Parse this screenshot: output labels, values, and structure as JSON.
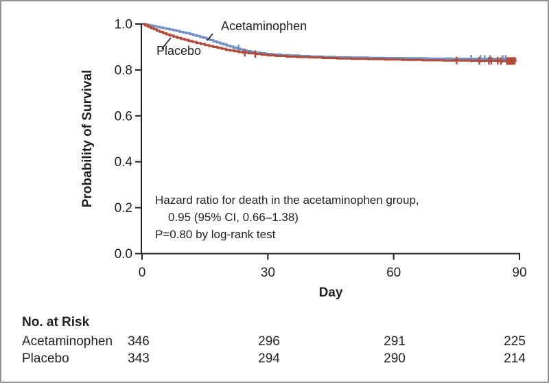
{
  "figure": {
    "y_axis_label": "Probability of Survival",
    "x_axis_label": "Day",
    "curve_labels": {
      "acetaminophen": "Acetaminophen",
      "placebo": "Placebo"
    },
    "annotation": {
      "line1": "Hazard ratio for death in the acetaminophen group,",
      "line2": "0.95 (95% CI, 0.66–1.38)",
      "line3": "P=0.80 by log-rank test"
    }
  },
  "colors": {
    "acetaminophen": "#7090C4",
    "placebo": "#B14A38",
    "axis": "#231f20",
    "border": "#8f9194"
  },
  "chart_data": {
    "type": "line",
    "subtype": "kaplan-meier-step",
    "title": "",
    "xlabel": "Day",
    "ylabel": "Probability of Survival",
    "xlim": [
      0,
      90
    ],
    "ylim": [
      0.0,
      1.0
    ],
    "grid": false,
    "curve_end_day": 89.3,
    "xticks": [
      {
        "label": "0",
        "value": 0
      },
      {
        "label": "30",
        "value": 30
      },
      {
        "label": "60",
        "value": 60
      },
      {
        "label": "90",
        "value": 90
      }
    ],
    "yticks": [
      {
        "label": "0.0",
        "value": 0.0
      },
      {
        "label": "0.2",
        "value": 0.2
      },
      {
        "label": "0.4",
        "value": 0.4
      },
      {
        "label": "0.6",
        "value": 0.6
      },
      {
        "label": "0.8",
        "value": 0.8
      },
      {
        "label": "1.0",
        "value": 1.0
      }
    ],
    "series": [
      {
        "name": "Acetaminophen",
        "color": "#7090C4",
        "steps": [
          [
            0,
            1.0
          ],
          [
            1,
            0.997
          ],
          [
            1.8,
            0.994
          ],
          [
            2.6,
            0.991
          ],
          [
            3.4,
            0.988
          ],
          [
            4.2,
            0.985
          ],
          [
            5,
            0.982
          ],
          [
            5.8,
            0.979
          ],
          [
            6.6,
            0.976
          ],
          [
            7.4,
            0.973
          ],
          [
            8.2,
            0.97
          ],
          [
            9,
            0.966
          ],
          [
            9.8,
            0.963
          ],
          [
            10.6,
            0.96
          ],
          [
            11.4,
            0.956
          ],
          [
            12.2,
            0.952
          ],
          [
            13,
            0.948
          ],
          [
            13.8,
            0.944
          ],
          [
            14.6,
            0.94
          ],
          [
            15.4,
            0.935
          ],
          [
            16.2,
            0.93
          ],
          [
            17,
            0.925
          ],
          [
            17.8,
            0.92
          ],
          [
            18.6,
            0.915
          ],
          [
            19.4,
            0.911
          ],
          [
            20.2,
            0.906
          ],
          [
            21,
            0.902
          ],
          [
            21.8,
            0.897
          ],
          [
            22.6,
            0.893
          ],
          [
            23.4,
            0.889
          ],
          [
            24.2,
            0.885
          ],
          [
            25,
            0.882
          ],
          [
            26,
            0.879
          ],
          [
            27,
            0.876
          ],
          [
            28.2,
            0.873
          ],
          [
            29.5,
            0.87
          ],
          [
            31,
            0.868
          ],
          [
            33,
            0.865
          ],
          [
            35,
            0.863
          ],
          [
            37.5,
            0.861
          ],
          [
            40,
            0.859
          ],
          [
            43,
            0.857
          ],
          [
            46,
            0.855
          ],
          [
            50,
            0.854
          ],
          [
            54,
            0.853
          ],
          [
            58,
            0.852
          ],
          [
            62,
            0.851
          ],
          [
            68,
            0.85
          ],
          [
            74,
            0.849
          ],
          [
            80,
            0.848
          ],
          [
            86,
            0.848
          ]
        ],
        "censor_days": [
          23,
          78.5,
          80.7,
          81.7,
          83,
          86,
          86.7
        ]
      },
      {
        "name": "Placebo",
        "color": "#B14A38",
        "steps": [
          [
            0,
            1.0
          ],
          [
            0.7,
            0.994
          ],
          [
            1.4,
            0.988
          ],
          [
            2.1,
            0.982
          ],
          [
            2.8,
            0.977
          ],
          [
            3.5,
            0.971
          ],
          [
            4.2,
            0.966
          ],
          [
            5,
            0.96
          ],
          [
            5.8,
            0.955
          ],
          [
            6.6,
            0.95
          ],
          [
            7.5,
            0.945
          ],
          [
            8.4,
            0.94
          ],
          [
            9.3,
            0.935
          ],
          [
            10.2,
            0.931
          ],
          [
            11.1,
            0.926
          ],
          [
            12,
            0.922
          ],
          [
            13,
            0.917
          ],
          [
            14,
            0.913
          ],
          [
            15,
            0.908
          ],
          [
            16,
            0.904
          ],
          [
            17,
            0.9
          ],
          [
            18,
            0.896
          ],
          [
            19,
            0.892
          ],
          [
            20,
            0.888
          ],
          [
            21,
            0.885
          ],
          [
            22,
            0.881
          ],
          [
            23,
            0.878
          ],
          [
            24,
            0.875
          ],
          [
            25.5,
            0.872
          ],
          [
            27,
            0.869
          ],
          [
            28.5,
            0.866
          ],
          [
            30,
            0.863
          ],
          [
            32,
            0.861
          ],
          [
            34.5,
            0.858
          ],
          [
            37,
            0.856
          ],
          [
            40,
            0.854
          ],
          [
            43,
            0.852
          ],
          [
            46.5,
            0.85
          ],
          [
            50,
            0.848
          ],
          [
            54,
            0.847
          ],
          [
            58,
            0.845
          ],
          [
            62,
            0.844
          ],
          [
            67,
            0.842
          ],
          [
            72,
            0.841
          ],
          [
            79,
            0.84
          ],
          [
            85,
            0.839
          ]
        ],
        "censor_days": [
          24.5,
          27,
          75,
          80.4,
          82.7,
          83.3,
          84.8,
          85.6,
          87,
          87.3,
          87.6,
          87.9,
          88.2,
          88.5,
          88.8
        ]
      }
    ],
    "legend_position": "labels-on-plot",
    "annotation_text": [
      "Hazard ratio for death in the acetaminophen group,",
      "0.95 (95% CI, 0.66–1.38)",
      "P=0.80 by log-rank test"
    ]
  },
  "risk_table": {
    "title": "No. at Risk",
    "timepoints": [
      0,
      30,
      60,
      90
    ],
    "rows": [
      {
        "label": "Acetaminophen",
        "values": [
          "346",
          "296",
          "291",
          "225"
        ]
      },
      {
        "label": "Placebo",
        "values": [
          "343",
          "294",
          "290",
          "214"
        ]
      }
    ]
  }
}
